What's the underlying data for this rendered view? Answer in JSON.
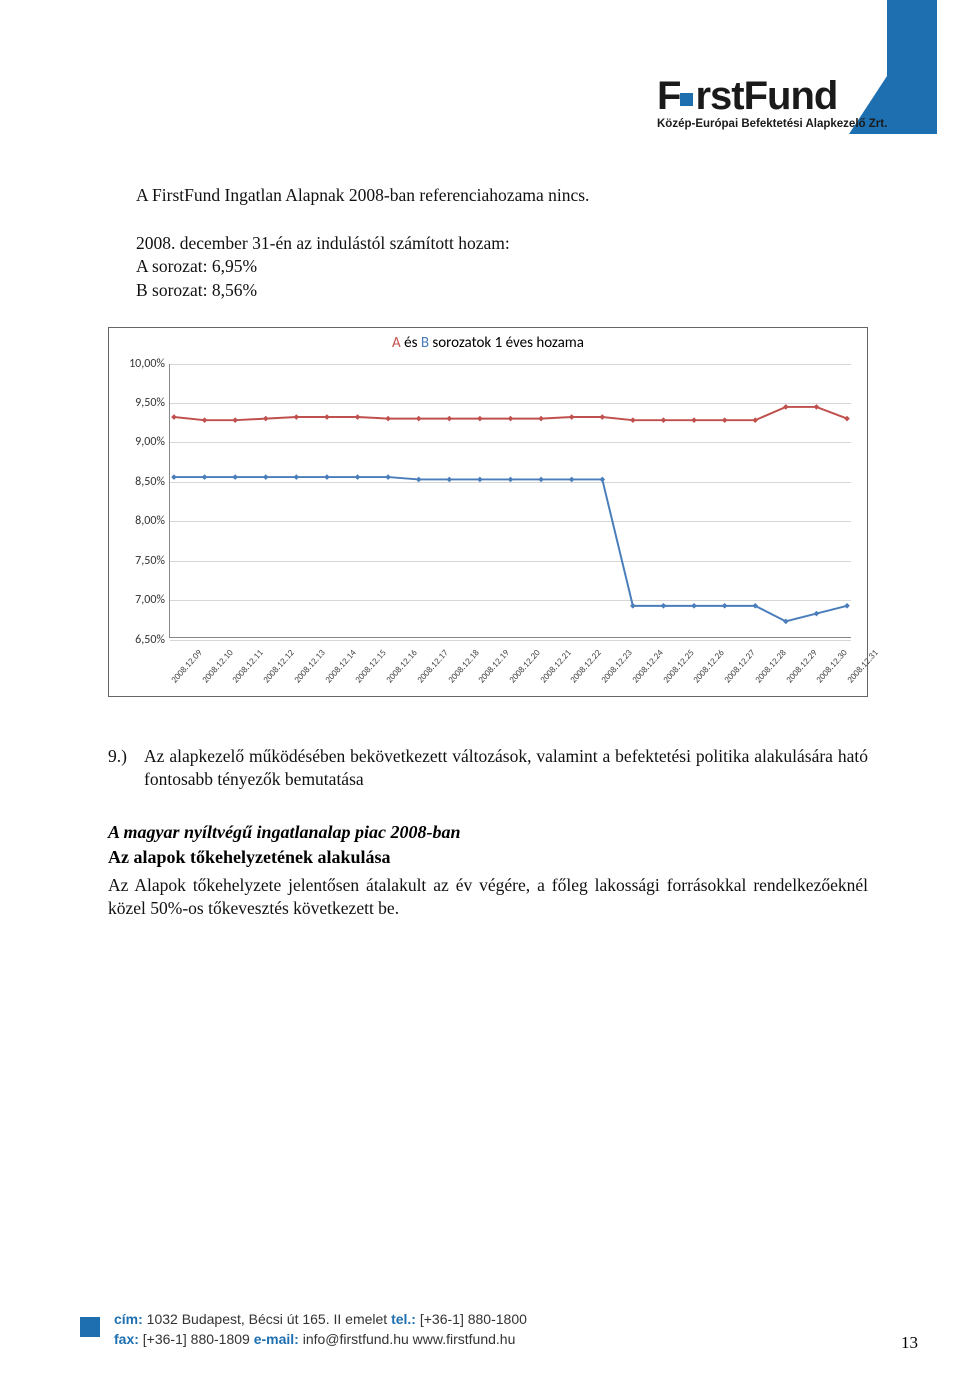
{
  "logo": {
    "brand_first": "F",
    "brand_rest": "rstFund",
    "subtitle": "Közép-Európai Befektetési Alapkezelő Zrt."
  },
  "body": {
    "p1": "A FirstFund Ingatlan Alapnak 2008-ban referenciahozama nincs.",
    "p2_lead": "2008. december 31-én az indulástól számított hozam:",
    "p2_a": "A sorozat: 6,95%",
    "p2_b": "B sorozat: 8,56%",
    "point9_num": "9.)",
    "point9_text": "Az alapkezelő működésében bekövetkezett változások, valamint a befektetési politika alakulására ható fontosabb tényezők bemutatása",
    "heading_italic": "A magyar nyíltvégű ingatlanalap piac 2008-ban",
    "heading_bold": "Az alapok tőkehelyzetének alakulása",
    "p_after": "Az Alapok tőkehelyzete jelentősen átalakult az év végére, a főleg lakossági forrásokkal rendelkezőeknél közel 50%-os tőkevesztés következett be."
  },
  "chart": {
    "title_prefix": "",
    "title_a": "A",
    "title_mid": " és ",
    "title_b": "B",
    "title_suffix": " sorozatok 1 éves hozama",
    "ymin": 6.5,
    "ymax": 10.0,
    "ystep": 0.5,
    "y_ticks": [
      "10,00%",
      "9,50%",
      "9,00%",
      "8,50%",
      "8,00%",
      "7,50%",
      "7,00%",
      "6,50%"
    ],
    "x_labels": [
      "2008.12.09",
      "2008.12.10",
      "2008.12.11",
      "2008.12.12",
      "2008.12.13",
      "2008.12.14",
      "2008.12.15",
      "2008.12.16",
      "2008.12.17",
      "2008.12.18",
      "2008.12.19",
      "2008.12.20",
      "2008.12.21",
      "2008.12.22",
      "2008.12.23",
      "2008.12.24",
      "2008.12.25",
      "2008.12.26",
      "2008.12.27",
      "2008.12.28",
      "2008.12.29",
      "2008.12.30",
      "2008.12.31"
    ],
    "series_a_color": "#c0504d",
    "series_b_color": "#4a7ebb",
    "line_width": 2,
    "marker_size": 4,
    "grid_color": "#d6d6d6",
    "background_color": "#ffffff",
    "series_a": [
      9.32,
      9.28,
      9.28,
      9.3,
      9.32,
      9.32,
      9.32,
      9.3,
      9.3,
      9.3,
      9.3,
      9.3,
      9.3,
      9.32,
      9.32,
      9.28,
      9.28,
      9.28,
      9.28,
      9.28,
      9.45,
      9.45,
      9.3
    ],
    "series_b": [
      8.55,
      8.55,
      8.55,
      8.55,
      8.55,
      8.55,
      8.55,
      8.55,
      8.52,
      8.52,
      8.52,
      8.52,
      8.52,
      8.52,
      8.52,
      6.9,
      6.9,
      6.9,
      6.9,
      6.9,
      6.7,
      6.8,
      6.9
    ]
  },
  "footer": {
    "addr_label": "cím:",
    "addr": " 1032 Budapest, Bécsi út 165. II emelet ",
    "tel_label": "tel.:",
    "tel": " [+36-1] 880-1800",
    "fax_label": "fax:",
    "fax": " [+36-1] 880-1809 ",
    "email_label": "e-mail:",
    "email": " info@firstfund.hu ",
    "www": "www.firstfund.hu",
    "page_number": "13"
  }
}
